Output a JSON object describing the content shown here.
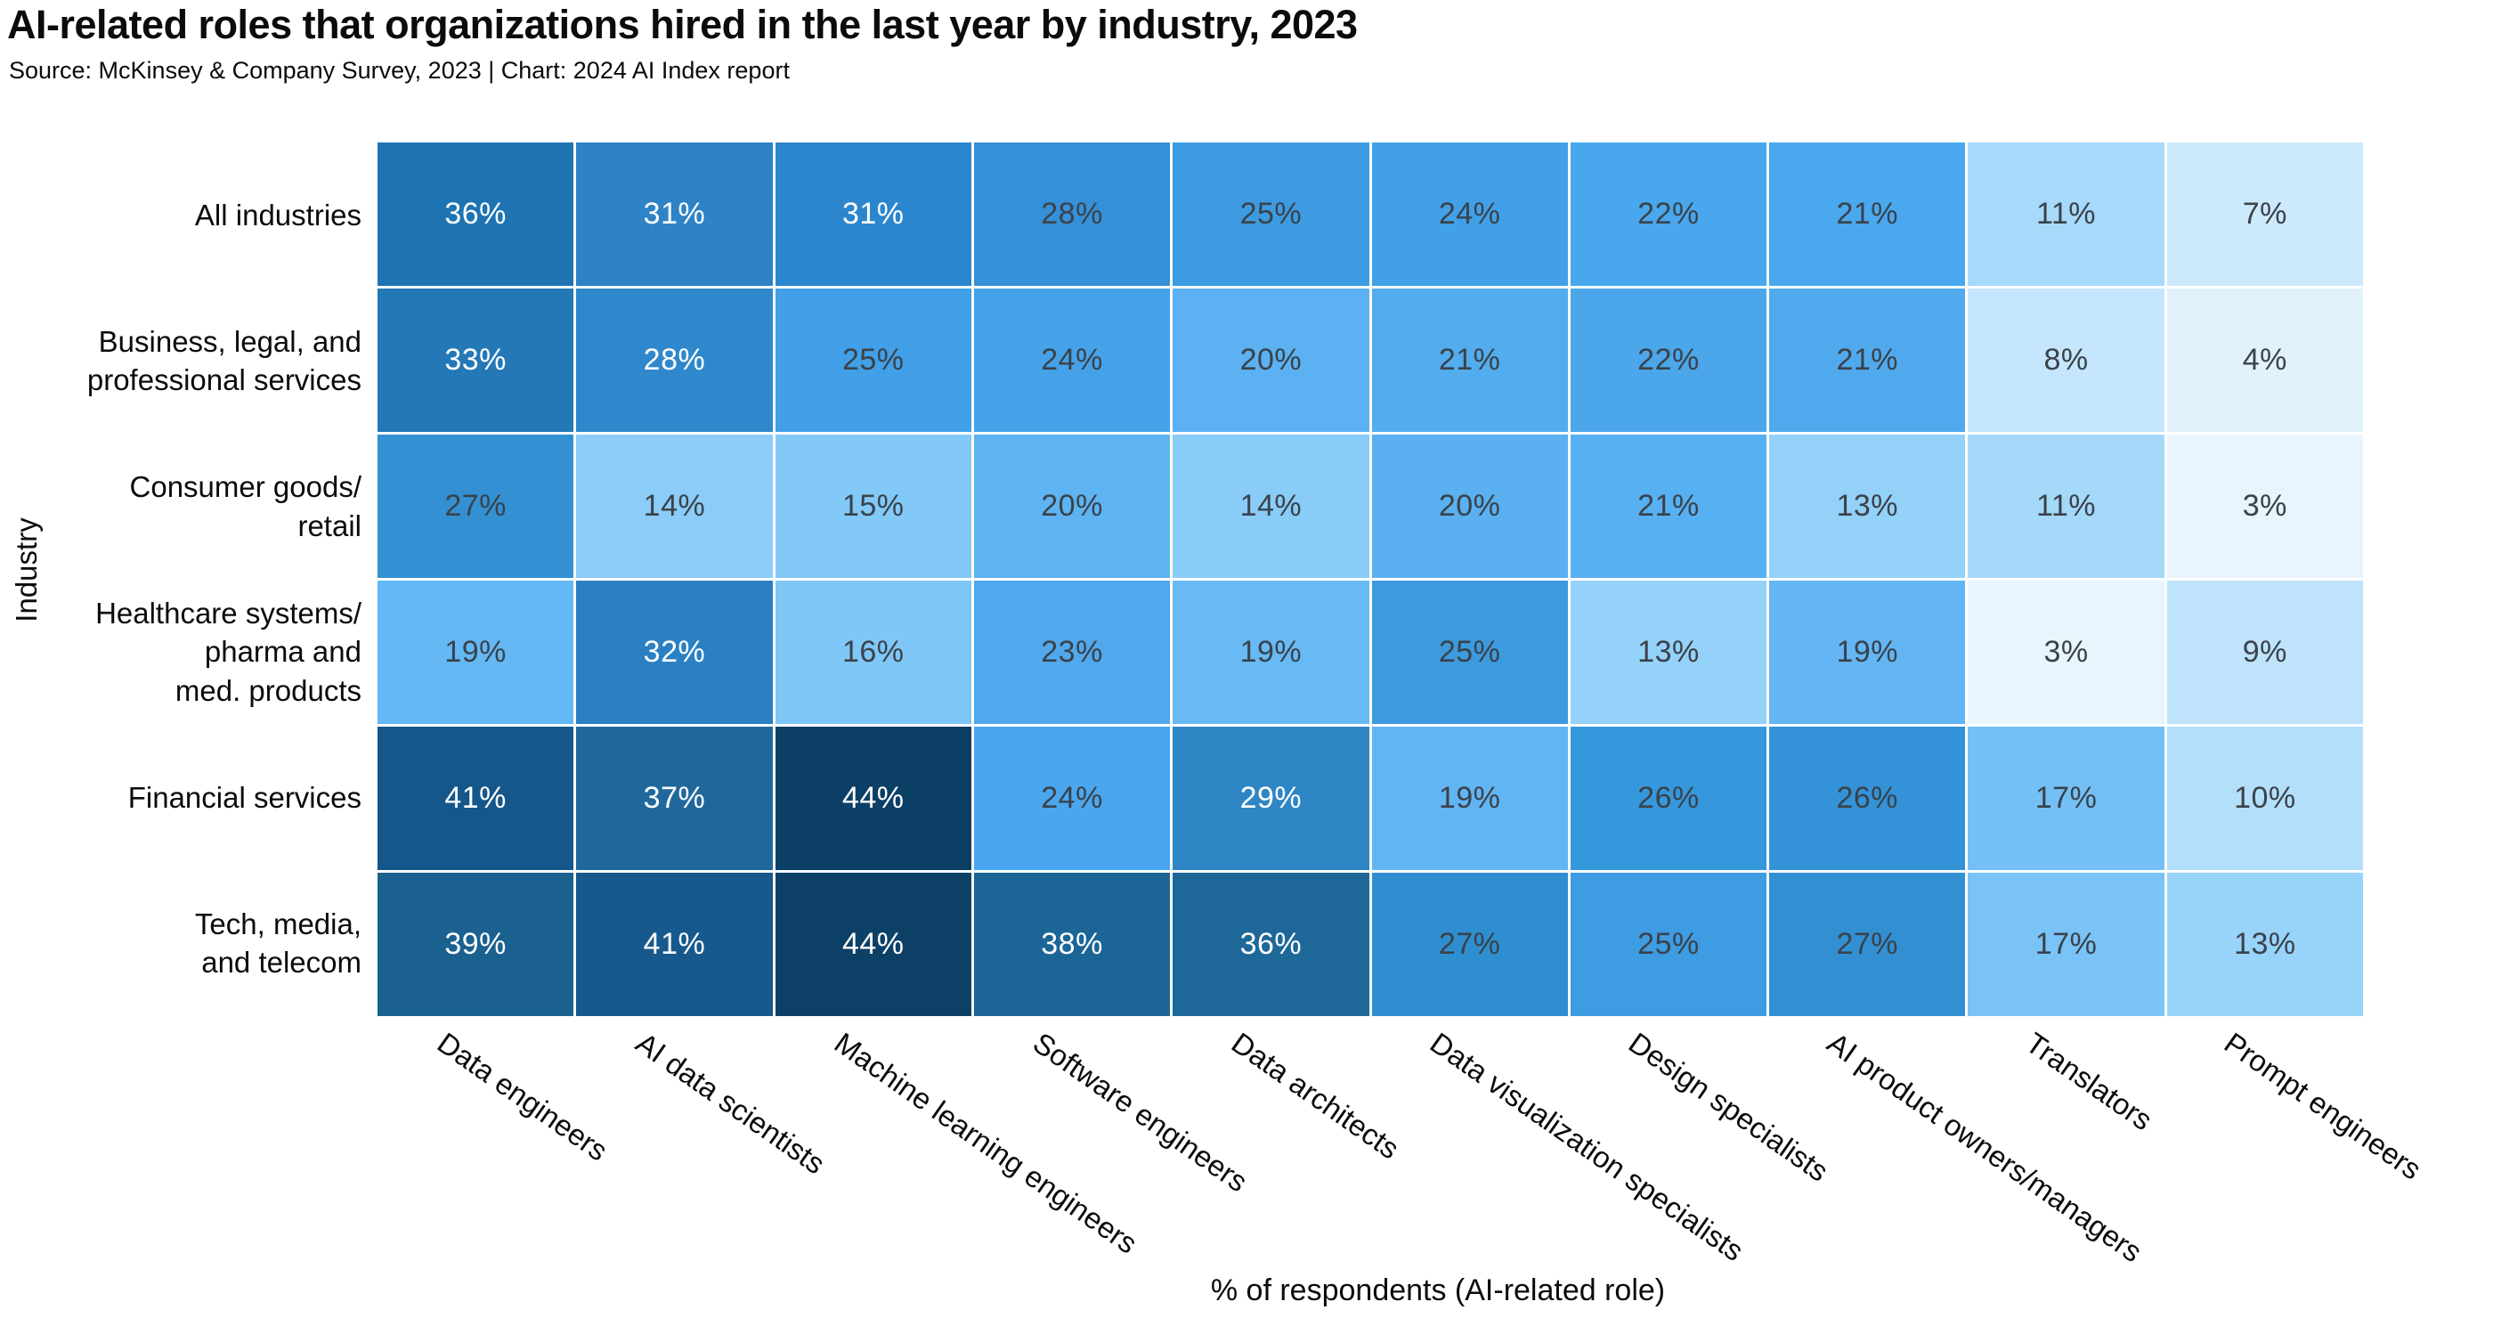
{
  "title": "AI-related roles that organizations hired in the last year by industry, 2023",
  "subtitle": "Source: McKinsey & Company Survey, 2023 | Chart: 2024 AI Index report",
  "chart_data": {
    "type": "heatmap",
    "title": "AI-related roles that organizations hired in the last year by industry, 2023",
    "subtitle": "Source: McKinsey & Company Survey, 2023 | Chart: 2024 AI Index report",
    "xlabel": "% of respondents (AI-related role)",
    "ylabel": "Industry",
    "value_suffix": "%",
    "x_categories": [
      "Data engineers",
      "AI data scientists",
      "Machine learning engineers",
      "Software engineers",
      "Data architects",
      "Data visualization specialists",
      "Design specialists",
      "AI product owners/managers",
      "Translators",
      "Prompt engineers"
    ],
    "y_categories": [
      "All industries",
      "Business, legal, and\nprofessional services",
      "Consumer goods/\nretail",
      "Healthcare systems/\npharma and\nmed. products",
      "Financial services",
      "Tech, media,\nand telecom"
    ],
    "values": [
      [
        36,
        31,
        31,
        28,
        25,
        24,
        22,
        21,
        11,
        7
      ],
      [
        33,
        28,
        25,
        24,
        20,
        21,
        22,
        21,
        8,
        4
      ],
      [
        27,
        14,
        15,
        20,
        14,
        20,
        21,
        13,
        11,
        3
      ],
      [
        19,
        32,
        16,
        23,
        19,
        25,
        13,
        19,
        3,
        9
      ],
      [
        41,
        37,
        44,
        24,
        29,
        19,
        26,
        26,
        17,
        10
      ],
      [
        39,
        41,
        44,
        38,
        36,
        27,
        25,
        27,
        17,
        13
      ]
    ],
    "cell_colors": [
      [
        "#1e73b2",
        "#2d83c6",
        "#2c86cd",
        "#3490d8",
        "#3d9be2",
        "#41a0e8",
        "#48a7ed",
        "#4aa8ee",
        "#a7dafa",
        "#cdeafc"
      ],
      [
        "#2478b6",
        "#2f88cb",
        "#41a0e7",
        "#45a2e8",
        "#5bb1f1",
        "#53acee",
        "#4ba6ea",
        "#50a9ec",
        "#c5e6fc",
        "#e2f2fd"
      ],
      [
        "#3391d3",
        "#8bcdf8",
        "#83c9f8",
        "#5eb3f2",
        "#89ccf8",
        "#5ab0f0",
        "#57b0f2",
        "#93d1f9",
        "#a5d9fa",
        "#e9f5fd"
      ],
      [
        "#64b8f4",
        "#2a80c3",
        "#7ec7f7",
        "#51a8ec",
        "#67baf4",
        "#3d9ade",
        "#95d2f9",
        "#63b6f3",
        "#e9f5fd",
        "#bfe3fb"
      ],
      [
        "#15578a",
        "#20689c",
        "#0c3f66",
        "#4aa6ef",
        "#2e86c4",
        "#61b5f3",
        "#3597dc",
        "#3392d8",
        "#74c0f6",
        "#b4dffb"
      ],
      [
        "#1a618f",
        "#17598c",
        "#0d4066",
        "#1b6697",
        "#1d6899",
        "#2f8ed0",
        "#3d9ce2",
        "#3290d2",
        "#79c3f6",
        "#98d3f9"
      ]
    ],
    "label_dark_color": "#3a424a",
    "label_light_color": "#ffffff",
    "vmin": 3,
    "vmax": 44,
    "legend": "none",
    "grid": "off"
  },
  "layout_hints": {
    "x_tick_rotation_deg": 35
  }
}
